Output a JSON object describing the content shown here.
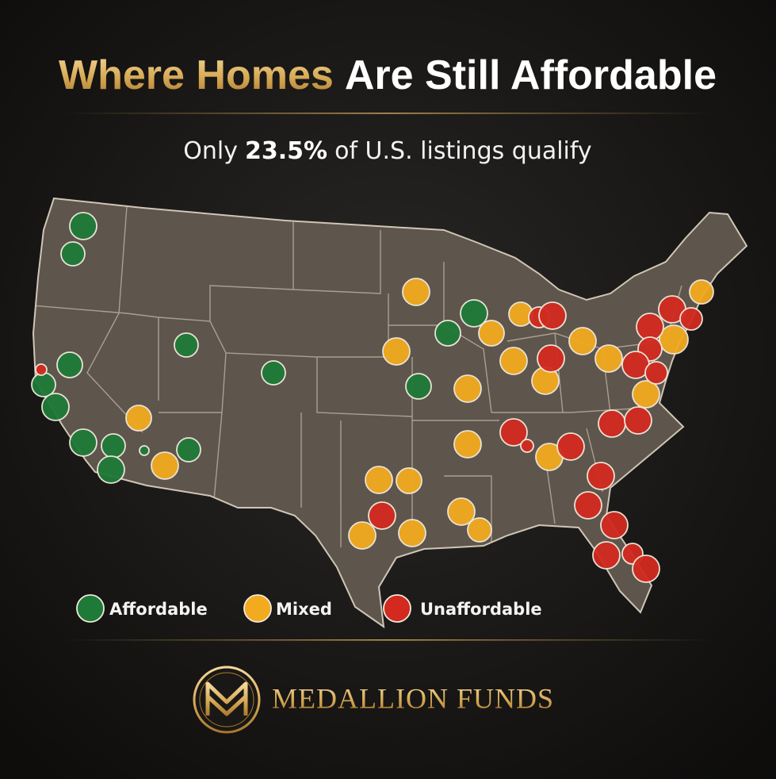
{
  "title": {
    "highlight": "Where Homes",
    "rest": "Are Still Affordable"
  },
  "subtitle": {
    "before": "Only",
    "highlight": "23.5%",
    "after": "of U.S. listings qualify"
  },
  "legend": [
    {
      "label": "Affordable",
      "color": "#1f7a38"
    },
    {
      "label": "Mixed",
      "color": "#f2aa1f"
    },
    {
      "label": "Unaffordable",
      "color": "#d22a1f"
    }
  ],
  "brand": "MEDALLION FUNDS"
}
